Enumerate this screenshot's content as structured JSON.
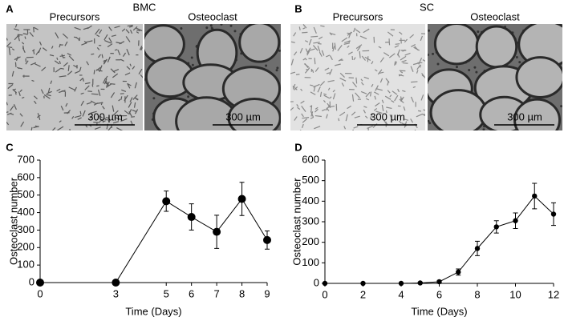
{
  "figure": {
    "panels": [
      {
        "label": "A",
        "title": "BMC",
        "images": [
          {
            "caption": "Precursors",
            "scale_bar": "300 µm"
          },
          {
            "caption": "Osteoclast",
            "scale_bar": "300 µm"
          }
        ]
      },
      {
        "label": "B",
        "title": "SC",
        "images": [
          {
            "caption": "Precursors",
            "scale_bar": "300 µm"
          },
          {
            "caption": "Osteoclast",
            "scale_bar": "300 µm"
          }
        ]
      }
    ]
  },
  "chart_data": [
    {
      "type": "line",
      "panel_label": "C",
      "xlabel": "Time (Days)",
      "ylabel": "Osteoclast number",
      "x": [
        0,
        3,
        5,
        6,
        7,
        8,
        9
      ],
      "series": [
        {
          "color": "#000000",
          "values": [
            0,
            0,
            465,
            375,
            290,
            478,
            243
          ],
          "errors": [
            0,
            0,
            58,
            75,
            95,
            95,
            52
          ]
        }
      ],
      "xlim": [
        0,
        9
      ],
      "xticks": [
        0,
        3,
        5,
        6,
        7,
        8,
        9
      ],
      "ylim": [
        0,
        700
      ],
      "yticks": [
        0,
        100,
        200,
        300,
        400,
        500,
        600,
        700
      ]
    },
    {
      "type": "line",
      "panel_label": "D",
      "xlabel": "Time (Days)",
      "ylabel": "Osteoclast number",
      "x": [
        0,
        2,
        4,
        5,
        6,
        7,
        8,
        9,
        10,
        11,
        12
      ],
      "series": [
        {
          "color": "#000000",
          "values": [
            0,
            0,
            0,
            2,
            8,
            55,
            170,
            275,
            305,
            425,
            337
          ],
          "errors": [
            0,
            0,
            0,
            3,
            5,
            15,
            35,
            30,
            38,
            62,
            55
          ]
        }
      ],
      "xlim": [
        0,
        12
      ],
      "xticks": [
        0,
        2,
        4,
        6,
        8,
        10,
        12
      ],
      "ylim": [
        0,
        600
      ],
      "yticks": [
        0,
        100,
        200,
        300,
        400,
        500,
        600
      ]
    }
  ]
}
